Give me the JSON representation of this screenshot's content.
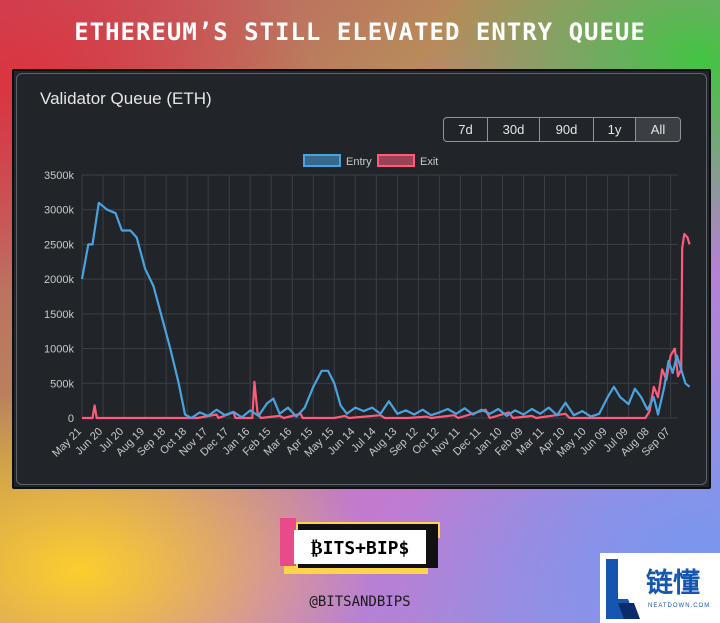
{
  "headline": "ETHEREUM’S STILL ELEVATED ENTRY QUEUE",
  "card": {
    "title": "Validator Queue (ETH)",
    "range_buttons": [
      "7d",
      "30d",
      "90d",
      "1y",
      "All"
    ],
    "active_range": "All"
  },
  "footer": {
    "logo_text": "₿ITS+BIP$",
    "handle": "@BITSANDBIPS"
  },
  "watermark": {
    "title": "链懂",
    "subtitle": "NEATDOWN.COM"
  },
  "colors": {
    "entry": "#4aa3df",
    "exit": "#ff5a7a",
    "card_bg": "#212529",
    "grid": "#3a3f44"
  },
  "chart_data": {
    "type": "line",
    "title": "Validator Queue (ETH)",
    "xlabel": "",
    "ylabel": "",
    "ylim": [
      0,
      3500000
    ],
    "y_ticks": [
      "0",
      "500k",
      "1000k",
      "1500k",
      "2000k",
      "2500k",
      "3000k",
      "3500k"
    ],
    "categories": [
      "May 21",
      "Jun 20",
      "Jul 20",
      "Aug 19",
      "Sep 18",
      "Oct 18",
      "Nov 17",
      "Dec 17",
      "Jan 16",
      "Feb 15",
      "Mar 16",
      "Apr 15",
      "May 15",
      "Jun 14",
      "Jul 14",
      "Aug 13",
      "Sep 12",
      "Oct 12",
      "Nov 11",
      "Dec 11",
      "Jan 10",
      "Feb 09",
      "Mar 11",
      "Apr 10",
      "May 10",
      "Jun 09",
      "Jul 09",
      "Aug 08",
      "Sep 07"
    ],
    "grid": true,
    "legend_position": "top-center",
    "series": [
      {
        "name": "Entry",
        "color": "#4aa3df",
        "points": [
          [
            0,
            2000000
          ],
          [
            0.3,
            2500000
          ],
          [
            0.5,
            2500000
          ],
          [
            0.8,
            3100000
          ],
          [
            1.2,
            3000000
          ],
          [
            1.6,
            2950000
          ],
          [
            1.9,
            2700000
          ],
          [
            2.3,
            2700000
          ],
          [
            2.6,
            2600000
          ],
          [
            3.0,
            2150000
          ],
          [
            3.4,
            1900000
          ],
          [
            3.8,
            1450000
          ],
          [
            4.2,
            1000000
          ],
          [
            4.6,
            500000
          ],
          [
            4.9,
            50000
          ],
          [
            5.2,
            0
          ],
          [
            5.6,
            80000
          ],
          [
            6.0,
            30000
          ],
          [
            6.4,
            120000
          ],
          [
            6.8,
            40000
          ],
          [
            7.2,
            90000
          ],
          [
            7.6,
            10000
          ],
          [
            8.0,
            110000
          ],
          [
            8.4,
            30000
          ],
          [
            8.8,
            210000
          ],
          [
            9.1,
            280000
          ],
          [
            9.4,
            60000
          ],
          [
            9.8,
            150000
          ],
          [
            10.2,
            20000
          ],
          [
            10.6,
            150000
          ],
          [
            11.0,
            450000
          ],
          [
            11.4,
            680000
          ],
          [
            11.7,
            680000
          ],
          [
            12.0,
            500000
          ],
          [
            12.3,
            180000
          ],
          [
            12.6,
            60000
          ],
          [
            13.0,
            150000
          ],
          [
            13.4,
            100000
          ],
          [
            13.8,
            150000
          ],
          [
            14.2,
            60000
          ],
          [
            14.6,
            240000
          ],
          [
            15.0,
            60000
          ],
          [
            15.4,
            110000
          ],
          [
            15.8,
            50000
          ],
          [
            16.2,
            120000
          ],
          [
            16.6,
            40000
          ],
          [
            17.0,
            80000
          ],
          [
            17.4,
            130000
          ],
          [
            17.8,
            60000
          ],
          [
            18.2,
            140000
          ],
          [
            18.6,
            50000
          ],
          [
            19.0,
            120000
          ],
          [
            19.4,
            60000
          ],
          [
            19.8,
            130000
          ],
          [
            20.2,
            30000
          ],
          [
            20.6,
            110000
          ],
          [
            21.0,
            50000
          ],
          [
            21.4,
            130000
          ],
          [
            21.8,
            60000
          ],
          [
            22.2,
            150000
          ],
          [
            22.6,
            40000
          ],
          [
            23.0,
            220000
          ],
          [
            23.4,
            40000
          ],
          [
            23.8,
            100000
          ],
          [
            24.2,
            20000
          ],
          [
            24.6,
            60000
          ],
          [
            25.0,
            300000
          ],
          [
            25.3,
            450000
          ],
          [
            25.6,
            300000
          ],
          [
            26.0,
            200000
          ],
          [
            26.3,
            420000
          ],
          [
            26.6,
            300000
          ],
          [
            26.9,
            120000
          ],
          [
            27.2,
            300000
          ],
          [
            27.4,
            50000
          ],
          [
            27.7,
            450000
          ],
          [
            27.9,
            820000
          ],
          [
            28.1,
            650000
          ],
          [
            28.3,
            900000
          ],
          [
            28.5,
            700000
          ],
          [
            28.7,
            500000
          ],
          [
            28.9,
            450000
          ]
        ]
      },
      {
        "name": "Exit",
        "color": "#ff5a7a",
        "points": [
          [
            0,
            0
          ],
          [
            0.5,
            0
          ],
          [
            0.6,
            180000
          ],
          [
            0.7,
            0
          ],
          [
            2.0,
            0
          ],
          [
            4.0,
            0
          ],
          [
            5.5,
            0
          ],
          [
            6.4,
            50000
          ],
          [
            6.5,
            0
          ],
          [
            7.2,
            80000
          ],
          [
            7.3,
            0
          ],
          [
            8.1,
            0
          ],
          [
            8.2,
            520000
          ],
          [
            8.35,
            80000
          ],
          [
            8.5,
            0
          ],
          [
            9.4,
            30000
          ],
          [
            9.6,
            0
          ],
          [
            10.4,
            60000
          ],
          [
            10.5,
            0
          ],
          [
            11.0,
            0
          ],
          [
            12.0,
            0
          ],
          [
            12.5,
            30000
          ],
          [
            12.7,
            0
          ],
          [
            14.2,
            40000
          ],
          [
            14.4,
            0
          ],
          [
            15.5,
            0
          ],
          [
            16.4,
            20000
          ],
          [
            16.6,
            0
          ],
          [
            17.7,
            40000
          ],
          [
            17.9,
            0
          ],
          [
            19.2,
            120000
          ],
          [
            19.4,
            0
          ],
          [
            20.3,
            80000
          ],
          [
            20.5,
            0
          ],
          [
            21.4,
            30000
          ],
          [
            21.6,
            0
          ],
          [
            23.0,
            60000
          ],
          [
            23.2,
            0
          ],
          [
            24.0,
            0
          ],
          [
            25.0,
            0
          ],
          [
            26.2,
            0
          ],
          [
            26.8,
            0
          ],
          [
            27.0,
            100000
          ],
          [
            27.2,
            450000
          ],
          [
            27.4,
            300000
          ],
          [
            27.6,
            700000
          ],
          [
            27.8,
            550000
          ],
          [
            28.0,
            900000
          ],
          [
            28.2,
            1000000
          ],
          [
            28.35,
            600000
          ],
          [
            28.5,
            700000
          ],
          [
            28.55,
            2450000
          ],
          [
            28.65,
            2650000
          ],
          [
            28.8,
            2600000
          ],
          [
            28.9,
            2500000
          ]
        ]
      }
    ]
  }
}
